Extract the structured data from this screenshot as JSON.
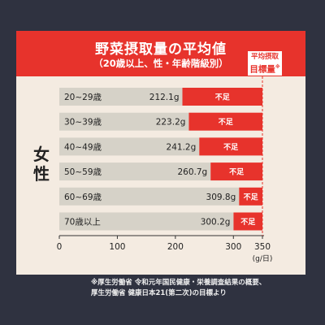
{
  "chart_data": {
    "type": "bar",
    "orientation": "horizontal",
    "title": "野菜摂取量の平均値",
    "subtitle": "（20歳以上、性・年齢階級別）",
    "group_label": "女性",
    "categories": [
      "20~29歳",
      "30~39歳",
      "40~49歳",
      "50~59歳",
      "60~69歳",
      "70歳以上"
    ],
    "values": [
      212.1,
      223.2,
      241.2,
      260.7,
      309.8,
      300.2
    ],
    "value_labels": [
      "212.1g",
      "223.2g",
      "241.2g",
      "260.7g",
      "309.8g",
      "300.2g"
    ],
    "target": 350,
    "shortfall_label": "不足",
    "target_label_line1": "平均摂取",
    "target_label_line2": "目標量",
    "target_label_mark": "※",
    "xlim": [
      0,
      350
    ],
    "xticks": [
      0,
      100,
      200,
      300,
      350
    ],
    "x_unit": "(g/日)",
    "colors": {
      "bar": "#d6d2c8",
      "shortfall": "#e7332c",
      "header": "#e7332c",
      "background": "#2f3240",
      "card": "#f4ebe1"
    }
  },
  "note": {
    "line1": "※厚生労働省 令和元年国民健康・栄養調査結果の概要、",
    "line2": "厚生労働省 健康日本21(第二次)の目標より"
  }
}
